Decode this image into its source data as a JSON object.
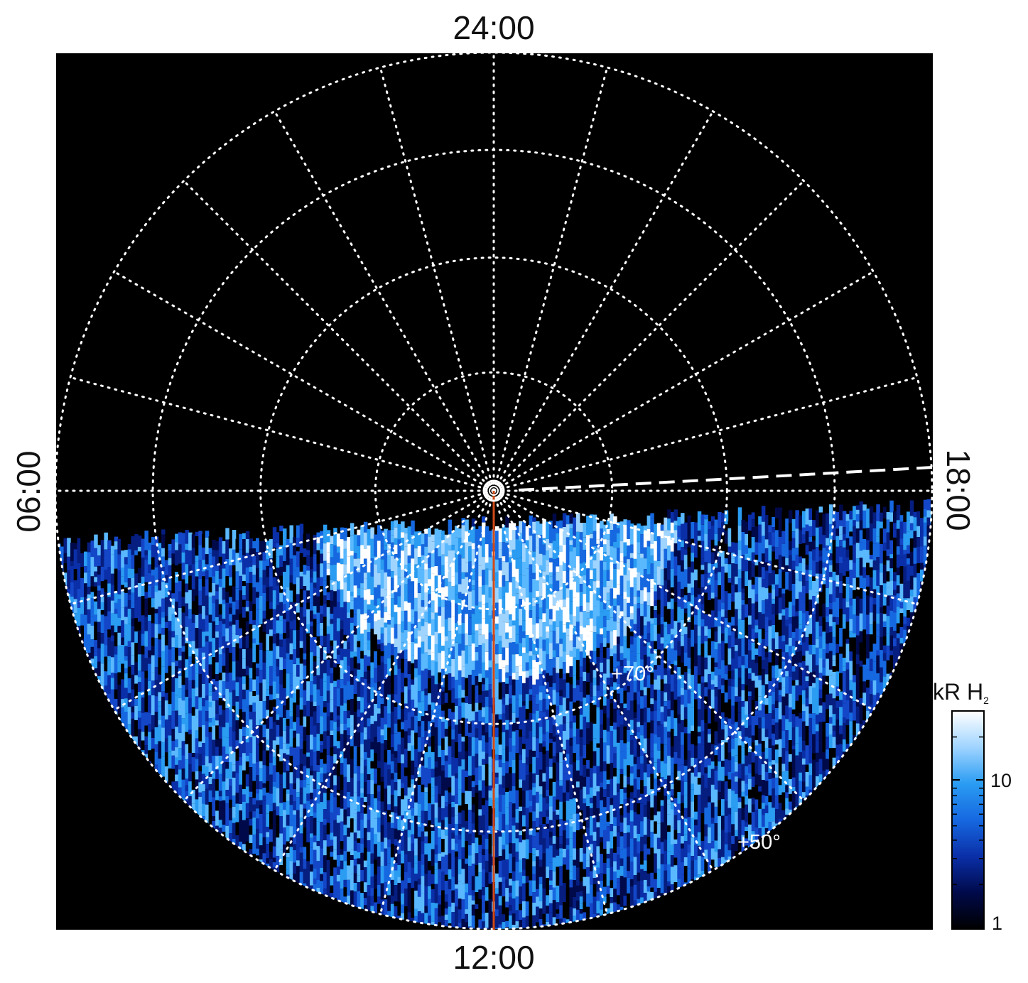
{
  "local_time_labels": {
    "top": "24:00",
    "bottom": "12:00",
    "left": "06:00",
    "right": "18:00"
  },
  "latitude_labels": [
    {
      "text": "+70°",
      "lat": 70
    },
    {
      "text": "+50°",
      "lat": 50
    }
  ],
  "colorbar": {
    "title_main": "kR H",
    "title_sub": "2",
    "ticks": [
      {
        "label": "10",
        "value": 10
      },
      {
        "label": "1",
        "value": 1
      }
    ],
    "range": [
      1,
      30
    ],
    "scale": "log",
    "colors": [
      "#000000",
      "#000a4a",
      "#0a2fa8",
      "#1668e0",
      "#2a9cf2",
      "#9fd4ff",
      "#ffffff"
    ]
  },
  "projection": {
    "type": "polar-orthographic",
    "center": "north-pole",
    "latitude_circles": [
      50,
      60,
      70,
      80,
      90
    ],
    "meridian_count": 24
  },
  "colors": {
    "background": "#000000",
    "grid": "#ffffff",
    "meridian_line": "#d24a17",
    "dashed_line": "#ffffff"
  }
}
